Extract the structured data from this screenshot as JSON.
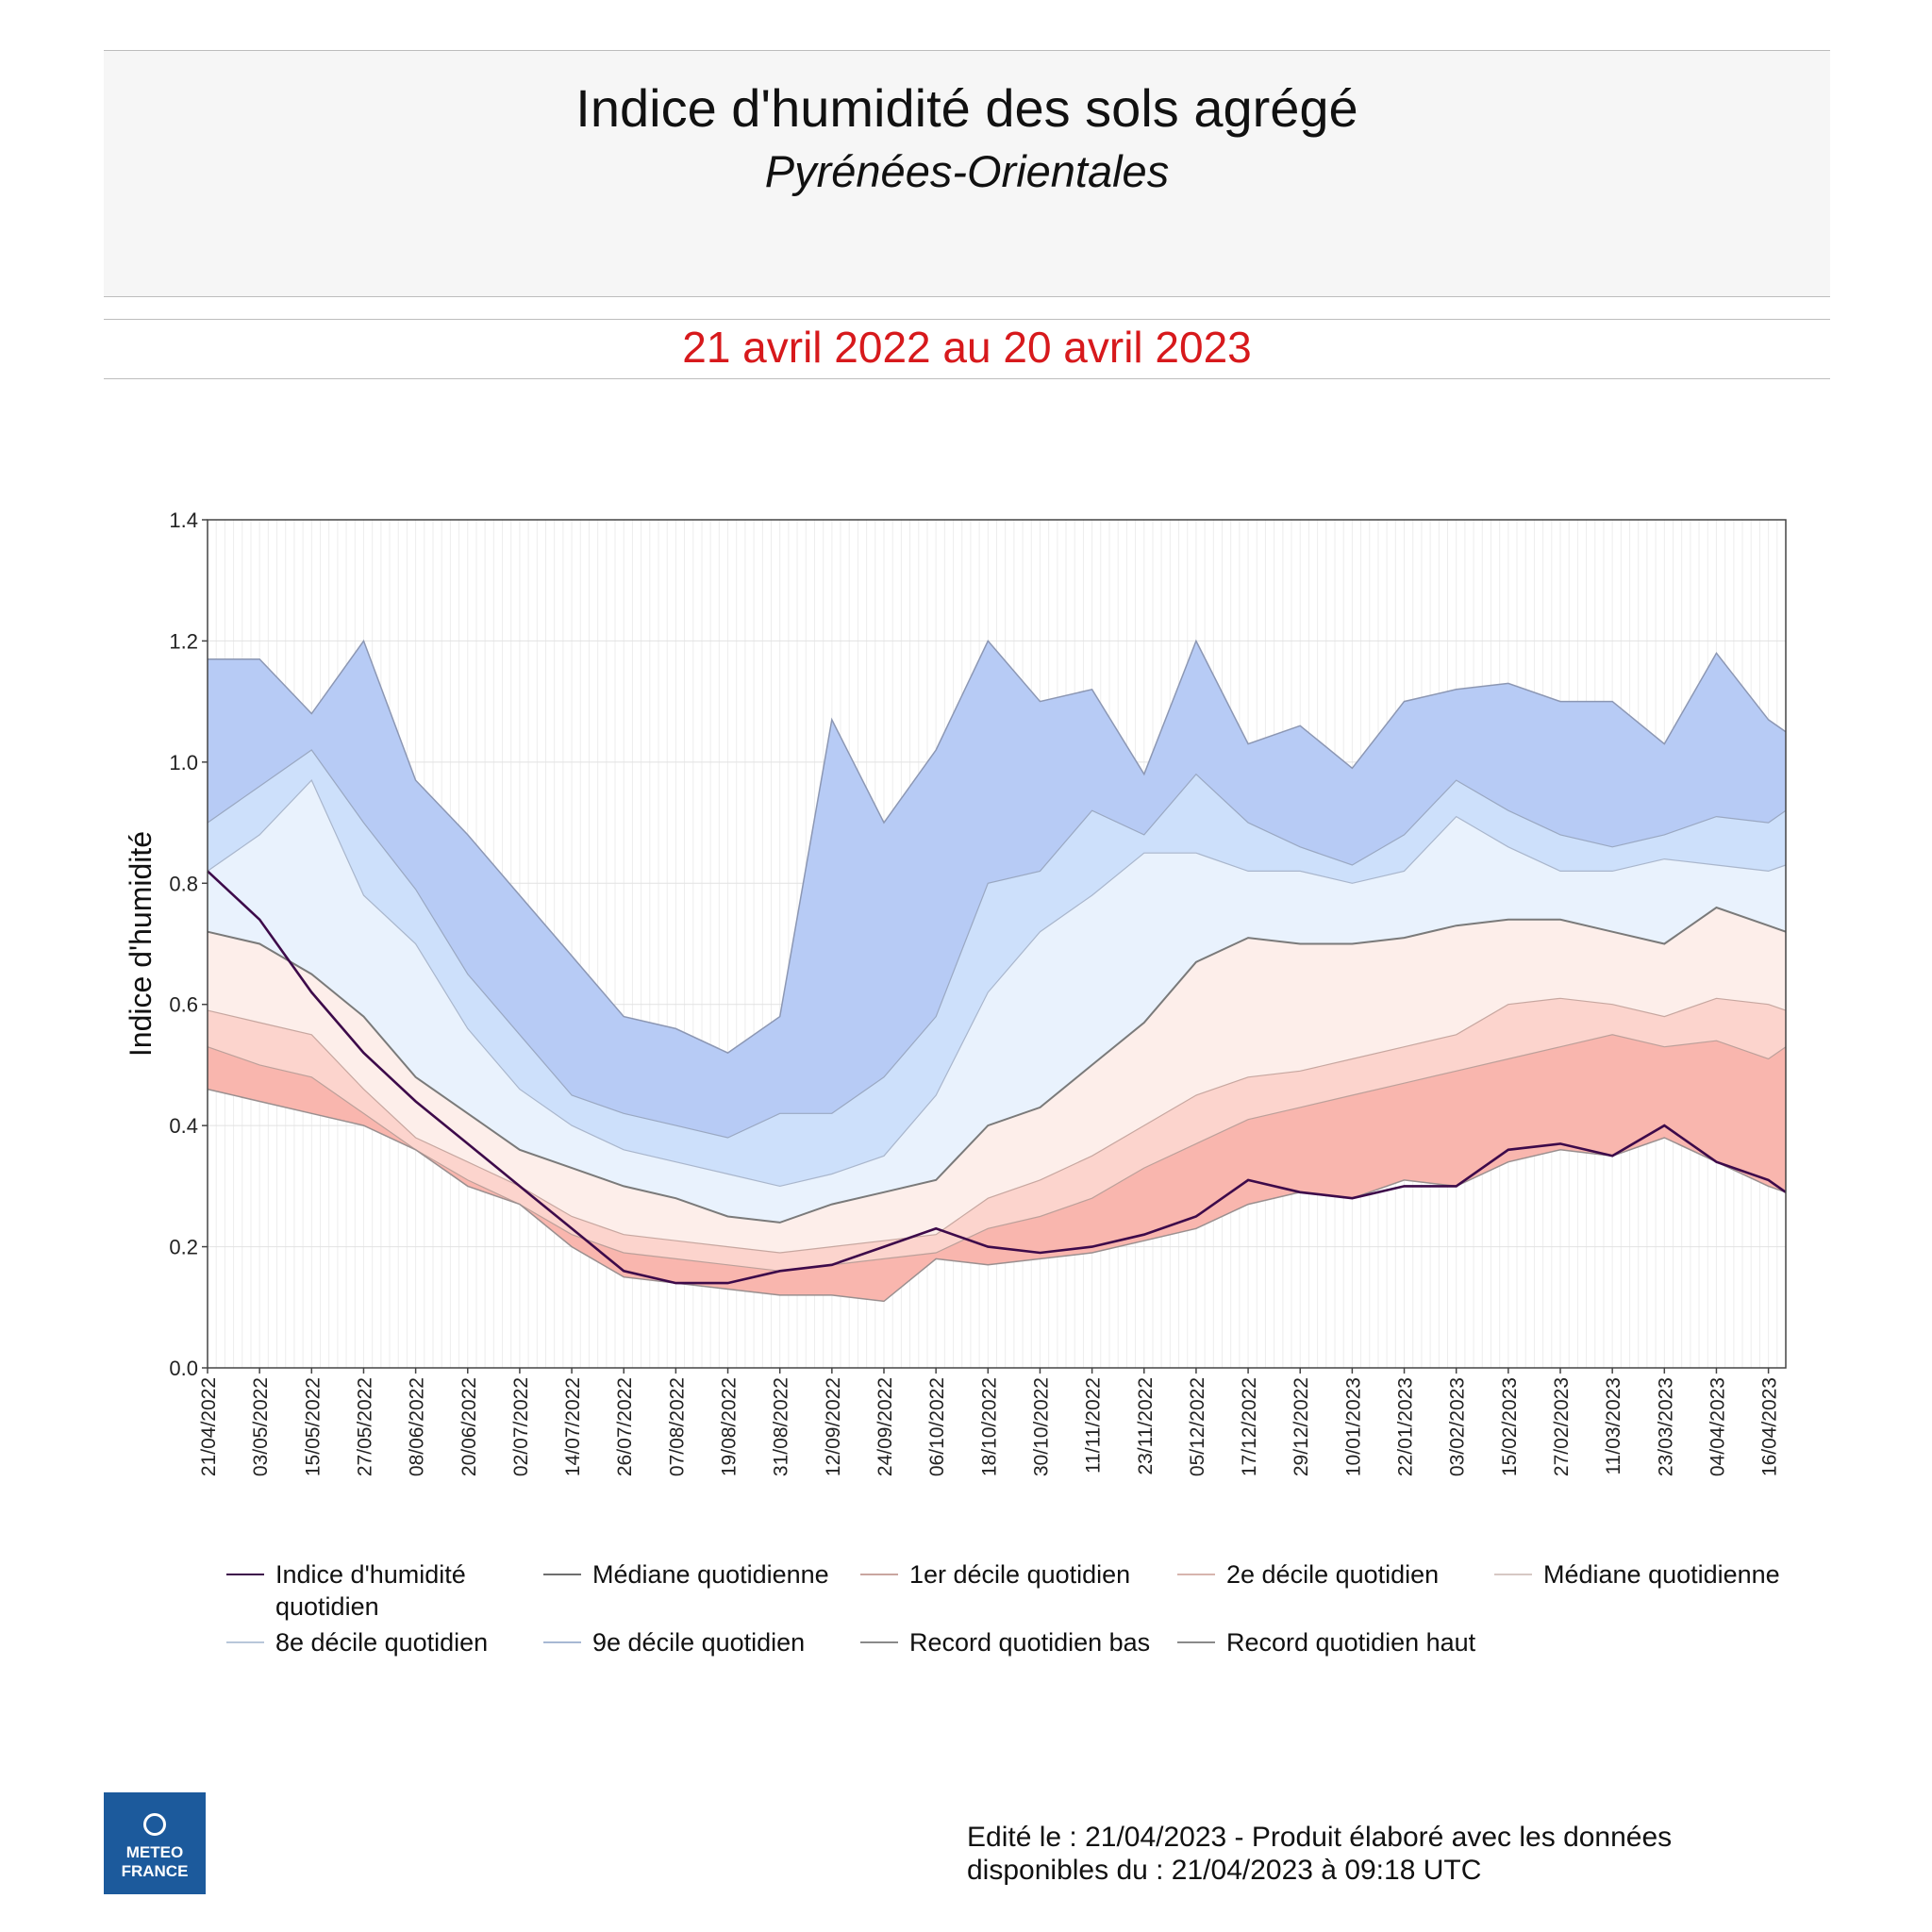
{
  "header": {
    "title": "Indice d'humidité des sols agrégé",
    "subtitle": "Pyrénées-Orientales",
    "period": "21 avril 2022 au 20 avril 2023"
  },
  "footer": {
    "line1": "Edité le : 21/04/2023 - Produit élaboré avec les données",
    "line2": "disponibles du : 21/04/2023 à 09:18 UTC"
  },
  "logo": {
    "line1": "METEO",
    "line2": "FRANCE",
    "icon": "meteo-france-logo-icon"
  },
  "colors": {
    "current": "#3d0a4a",
    "median_line": "#7a7a7a",
    "band_record_high": "#b7cbf5",
    "band_9": "#cde0fb",
    "band_8": "#e9f2fd",
    "band_median_low": "#fdeeea",
    "band_2": "#fcd4cd",
    "band_1": "#f9b6ae"
  },
  "chart_data": {
    "type": "area",
    "ylabel": "Indice d'humidité",
    "ylim": [
      0,
      1.4
    ],
    "yticks": [
      "0.0",
      "0.2",
      "0.4",
      "0.6",
      "0.8",
      "1.0",
      "1.2",
      "1.4"
    ],
    "x": [
      "21/04/2022",
      "03/05/2022",
      "15/05/2022",
      "27/05/2022",
      "08/06/2022",
      "20/06/2022",
      "02/07/2022",
      "14/07/2022",
      "26/07/2022",
      "07/08/2022",
      "19/08/2022",
      "31/08/2022",
      "12/09/2022",
      "24/09/2022",
      "06/10/2022",
      "18/10/2022",
      "30/10/2022",
      "11/11/2022",
      "23/11/2022",
      "05/12/2022",
      "17/12/2022",
      "29/12/2022",
      "10/01/2023",
      "22/01/2023",
      "03/02/2023",
      "15/02/2023",
      "27/02/2023",
      "11/03/2023",
      "23/03/2023",
      "04/04/2023",
      "16/04/2023",
      "20/04/2023"
    ],
    "xticks": [
      "21/04/2022",
      "03/05/2022",
      "15/05/2022",
      "27/05/2022",
      "08/06/2022",
      "20/06/2022",
      "02/07/2022",
      "14/07/2022",
      "26/07/2022",
      "07/08/2022",
      "19/08/2022",
      "31/08/2022",
      "12/09/2022",
      "24/09/2022",
      "06/10/2022",
      "18/10/2022",
      "30/10/2022",
      "11/11/2022",
      "23/11/2022",
      "05/12/2022",
      "17/12/2022",
      "29/12/2022",
      "10/01/2023",
      "22/01/2023",
      "03/02/2023",
      "15/02/2023",
      "27/02/2023",
      "11/03/2023",
      "23/03/2023",
      "04/04/2023",
      "16/04/2023"
    ],
    "series": [
      {
        "name": "Record quotidien haut",
        "values": [
          1.17,
          1.17,
          1.08,
          1.2,
          0.97,
          0.88,
          0.78,
          0.68,
          0.58,
          0.56,
          0.52,
          0.58,
          1.07,
          0.9,
          1.02,
          1.2,
          1.1,
          1.12,
          0.98,
          1.2,
          1.03,
          1.06,
          0.99,
          1.1,
          1.12,
          1.13,
          1.1,
          1.1,
          1.03,
          1.18,
          1.07,
          1.05
        ]
      },
      {
        "name": "9e décile quotidien",
        "values": [
          0.9,
          0.96,
          1.02,
          0.9,
          0.79,
          0.65,
          0.55,
          0.45,
          0.42,
          0.4,
          0.38,
          0.42,
          0.42,
          0.48,
          0.58,
          0.8,
          0.82,
          0.92,
          0.88,
          0.98,
          0.9,
          0.86,
          0.83,
          0.88,
          0.97,
          0.92,
          0.88,
          0.86,
          0.88,
          0.91,
          0.9,
          0.92
        ]
      },
      {
        "name": "8e décile quotidien",
        "values": [
          0.82,
          0.88,
          0.97,
          0.78,
          0.7,
          0.56,
          0.46,
          0.4,
          0.36,
          0.34,
          0.32,
          0.3,
          0.32,
          0.35,
          0.45,
          0.62,
          0.72,
          0.78,
          0.85,
          0.85,
          0.82,
          0.82,
          0.8,
          0.82,
          0.91,
          0.86,
          0.82,
          0.82,
          0.84,
          0.83,
          0.82,
          0.83
        ]
      },
      {
        "name": "Médiane quotidienne",
        "values": [
          0.72,
          0.7,
          0.65,
          0.58,
          0.48,
          0.42,
          0.36,
          0.33,
          0.3,
          0.28,
          0.25,
          0.24,
          0.27,
          0.29,
          0.31,
          0.4,
          0.43,
          0.5,
          0.57,
          0.67,
          0.71,
          0.7,
          0.7,
          0.71,
          0.73,
          0.74,
          0.74,
          0.72,
          0.7,
          0.76,
          0.73,
          0.72
        ]
      },
      {
        "name": "2e décile quotidien",
        "values": [
          0.59,
          0.57,
          0.55,
          0.46,
          0.38,
          0.34,
          0.3,
          0.25,
          0.22,
          0.21,
          0.2,
          0.19,
          0.2,
          0.21,
          0.22,
          0.28,
          0.31,
          0.35,
          0.4,
          0.45,
          0.48,
          0.49,
          0.51,
          0.53,
          0.55,
          0.6,
          0.61,
          0.6,
          0.58,
          0.61,
          0.6,
          0.59
        ]
      },
      {
        "name": "1er décile quotidien",
        "values": [
          0.53,
          0.5,
          0.48,
          0.42,
          0.36,
          0.31,
          0.27,
          0.22,
          0.19,
          0.18,
          0.17,
          0.16,
          0.17,
          0.18,
          0.19,
          0.23,
          0.25,
          0.28,
          0.33,
          0.37,
          0.41,
          0.43,
          0.45,
          0.47,
          0.49,
          0.51,
          0.53,
          0.55,
          0.53,
          0.54,
          0.51,
          0.53
        ]
      },
      {
        "name": "Record quotidien bas",
        "values": [
          0.46,
          0.44,
          0.42,
          0.4,
          0.36,
          0.3,
          0.27,
          0.2,
          0.15,
          0.14,
          0.13,
          0.12,
          0.12,
          0.11,
          0.18,
          0.17,
          0.18,
          0.19,
          0.21,
          0.23,
          0.27,
          0.29,
          0.28,
          0.31,
          0.3,
          0.34,
          0.36,
          0.35,
          0.38,
          0.34,
          0.3,
          0.29
        ]
      },
      {
        "name": "Indice d'humidité quotidien",
        "values": [
          0.82,
          0.74,
          0.62,
          0.52,
          0.44,
          0.37,
          0.3,
          0.23,
          0.16,
          0.14,
          0.14,
          0.16,
          0.17,
          0.2,
          0.23,
          0.2,
          0.19,
          0.2,
          0.22,
          0.25,
          0.31,
          0.29,
          0.28,
          0.3,
          0.3,
          0.36,
          0.37,
          0.35,
          0.4,
          0.34,
          0.31,
          0.29
        ]
      }
    ]
  },
  "legend": [
    {
      "label": "Indice d'humidité quotidien",
      "color": "#3d0a4a"
    },
    {
      "label": "Médiane quotidienne",
      "color": "#6e6e6e"
    },
    {
      "label": "1er décile quotidien",
      "color": "#c9a6a0"
    },
    {
      "label": "2e décile quotidien",
      "color": "#d7b5ae"
    },
    {
      "label": "Médiane quotidienne",
      "color": "#d6c8c4"
    },
    {
      "label": "8e décile quotidien",
      "color": "#b8c7da"
    },
    {
      "label": "9e décile quotidien",
      "color": "#a7b8d3"
    },
    {
      "label": "Record quotidien bas",
      "color": "#8a8a8a"
    },
    {
      "label": "Record quotidien haut",
      "color": "#8a8a8a"
    }
  ]
}
